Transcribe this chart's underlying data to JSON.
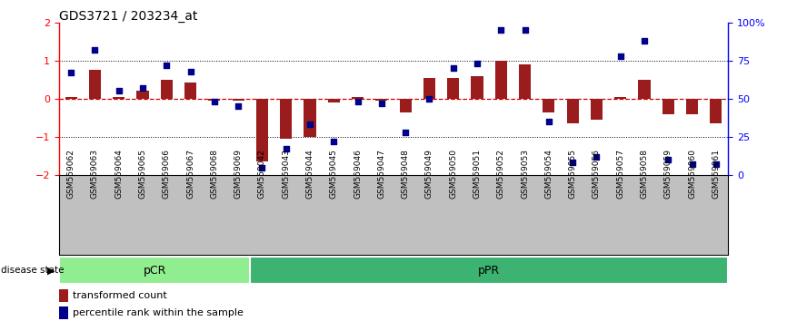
{
  "title": "GDS3721 / 203234_at",
  "samples": [
    "GSM559062",
    "GSM559063",
    "GSM559064",
    "GSM559065",
    "GSM559066",
    "GSM559067",
    "GSM559068",
    "GSM559069",
    "GSM559042",
    "GSM559043",
    "GSM559044",
    "GSM559045",
    "GSM559046",
    "GSM559047",
    "GSM559048",
    "GSM559049",
    "GSM559050",
    "GSM559051",
    "GSM559052",
    "GSM559053",
    "GSM559054",
    "GSM559055",
    "GSM559056",
    "GSM559057",
    "GSM559058",
    "GSM559059",
    "GSM559060",
    "GSM559061"
  ],
  "bar_values": [
    0.05,
    0.75,
    0.05,
    0.22,
    0.5,
    0.42,
    -0.05,
    -0.05,
    -1.65,
    -1.05,
    -1.0,
    -0.1,
    0.05,
    -0.05,
    -0.35,
    0.55,
    0.55,
    0.6,
    1.0,
    0.9,
    -0.35,
    -0.65,
    -0.55,
    0.05,
    0.5,
    -0.4,
    -0.4,
    -0.65
  ],
  "dot_values_pct": [
    67,
    82,
    55,
    57,
    72,
    68,
    48,
    45,
    5,
    17,
    33,
    22,
    48,
    47,
    28,
    50,
    70,
    73,
    95,
    95,
    35,
    8,
    12,
    78,
    88,
    10,
    7,
    7
  ],
  "pCR_count": 8,
  "ylim_left": [
    -2,
    2
  ],
  "ylim_right": [
    0,
    100
  ],
  "bar_color": "#9B1C1C",
  "dot_color": "#00008B",
  "pCR_color": "#90EE90",
  "pPR_color": "#3CB371",
  "tick_bg_color": "#C0C0C0",
  "hline0_color": "#CC0000",
  "dotline_color": "black",
  "left_yticks": [
    -2,
    -1,
    0,
    1,
    2
  ],
  "right_yticks": [
    0,
    25,
    50,
    75,
    100
  ],
  "right_yticklabels": [
    "0",
    "25",
    "50",
    "75",
    "100%"
  ]
}
